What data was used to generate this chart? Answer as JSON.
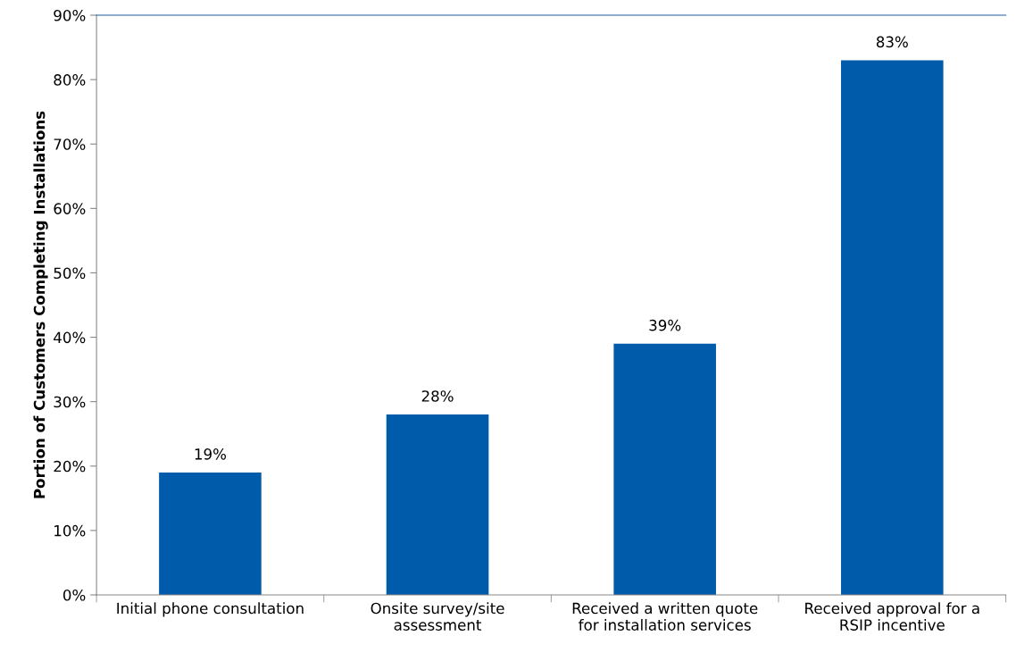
{
  "chart_data": {
    "type": "bar",
    "categories": [
      "Initial phone consultation",
      "Onsite survey/site\nassessment",
      "Received a written quote\nfor installation services",
      "Received approval for a\nRSIP incentive"
    ],
    "values": [
      19,
      28,
      39,
      83
    ],
    "value_labels": [
      "19%",
      "28%",
      "39%",
      "83%"
    ],
    "color": "#005bab",
    "ylabel": "Portion of Customers Completing Installations",
    "ylim": [
      0,
      90
    ],
    "yticks": [
      {
        "value": 0,
        "label": "0%"
      },
      {
        "value": 10,
        "label": "10%"
      },
      {
        "value": 20,
        "label": "20%"
      },
      {
        "value": 30,
        "label": "30%"
      },
      {
        "value": 40,
        "label": "40%"
      },
      {
        "value": 50,
        "label": "50%"
      },
      {
        "value": 60,
        "label": "60%"
      },
      {
        "value": 70,
        "label": "70%"
      },
      {
        "value": 80,
        "label": "80%"
      },
      {
        "value": 90,
        "label": "90%"
      }
    ],
    "grid": false,
    "legend": false
  }
}
